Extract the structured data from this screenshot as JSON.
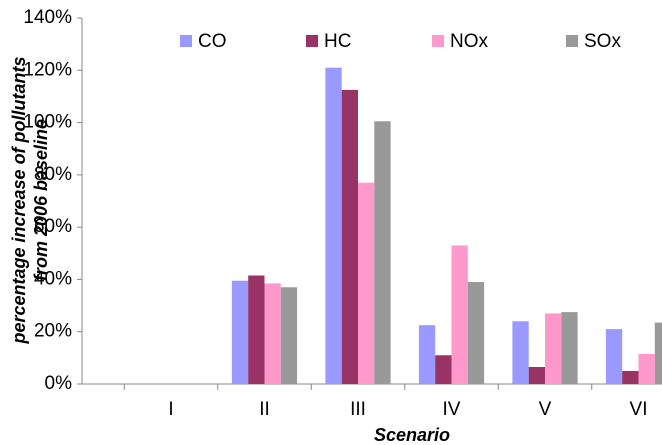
{
  "chart_data": {
    "type": "bar",
    "y_label": [
      "percentage increase of pollutants",
      "from 2006 baseline"
    ],
    "x_label": "Scenario",
    "categories": [
      "I",
      "II",
      "III",
      "IV",
      "V",
      "VI"
    ],
    "series": [
      {
        "name": "CO",
        "color": "#9999ff",
        "values": [
          0,
          39.5,
          121,
          22.5,
          24,
          21
        ]
      },
      {
        "name": "HC",
        "color": "#993366",
        "values": [
          0,
          41.5,
          112.5,
          11,
          6.5,
          5
        ]
      },
      {
        "name": "NOx",
        "color": "#ff99cc",
        "values": [
          0,
          38.5,
          77,
          53,
          27,
          11.5
        ]
      },
      {
        "name": "SOx",
        "color": "#999999",
        "values": [
          0,
          37,
          100.5,
          39,
          27.5,
          23.5
        ]
      }
    ],
    "ylim": [
      0,
      140
    ],
    "yticks": [
      {
        "value": 0,
        "label": "0%"
      },
      {
        "value": 20,
        "label": "20%"
      },
      {
        "value": 40,
        "label": "40%"
      },
      {
        "value": 60,
        "label": "60%"
      },
      {
        "value": 80,
        "label": "80%"
      },
      {
        "value": 100,
        "label": "100%"
      },
      {
        "value": 120,
        "label": "120%"
      },
      {
        "value": 140,
        "label": "140%"
      }
    ],
    "grid": false,
    "legend": "top"
  }
}
